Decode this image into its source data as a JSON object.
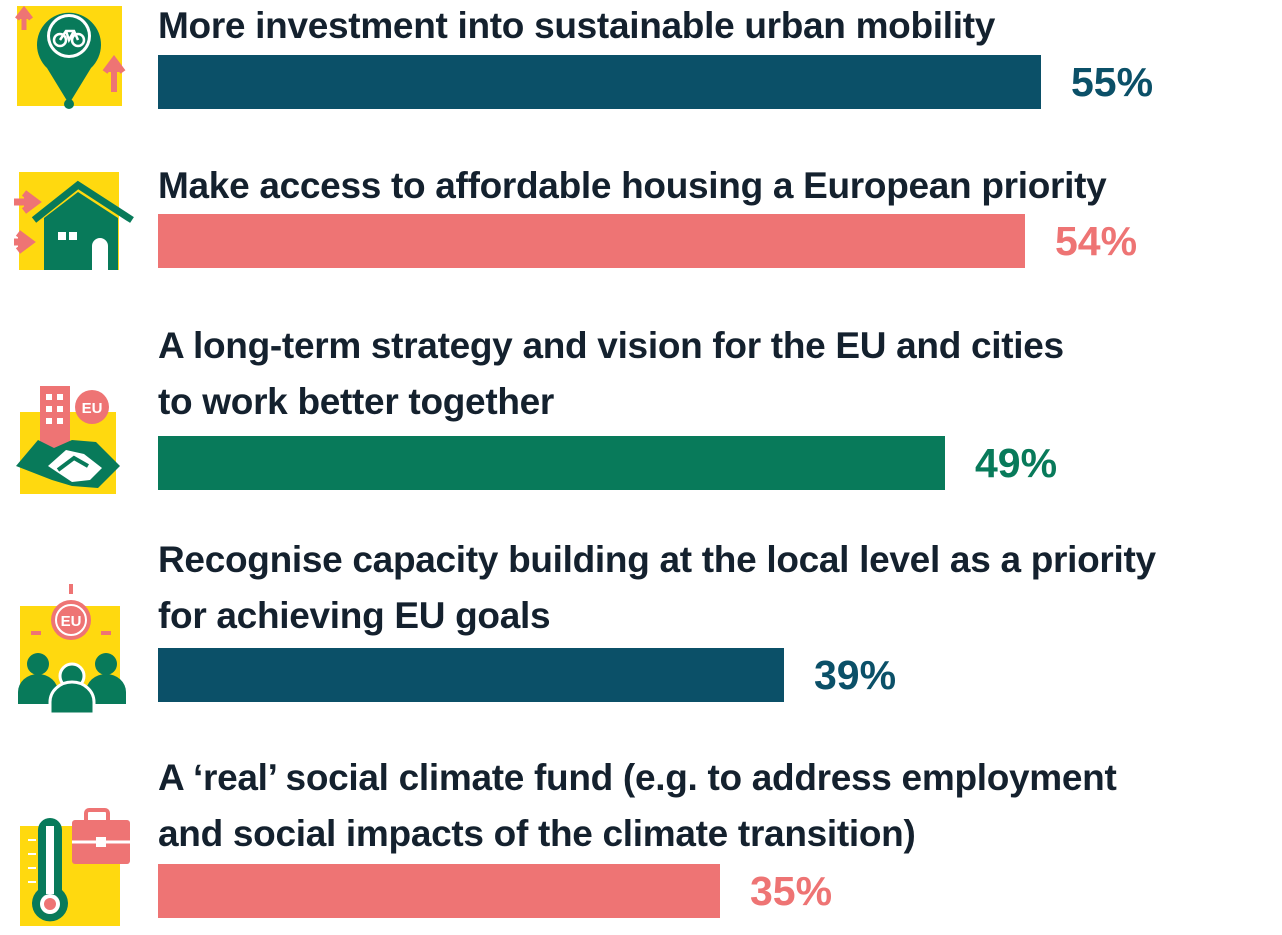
{
  "colors": {
    "teal": "#0b5068",
    "salmon": "#ee7474",
    "green": "#087a5a",
    "yellow": "#ffd90f",
    "text": "#14212e"
  },
  "chart_data": {
    "type": "bar",
    "orientation": "horizontal",
    "xlim": [
      0,
      100
    ],
    "categories": [
      "More investment into sustainable urban mobility",
      "Make access to affordable housing a European priority",
      "A long-term strategy and vision for the EU and cities to work better together",
      "Recognise capacity building at the local level as a priority for achieving EU goals",
      "A ‘real’ social climate fund (e.g. to address employment and social impacts of the climate transition)"
    ],
    "values": [
      55,
      54,
      49,
      39,
      35
    ],
    "value_labels": [
      "55%",
      "54%",
      "49%",
      "39%",
      "35%"
    ],
    "bar_colors": [
      "#0b5068",
      "#ee7474",
      "#087a5a",
      "#0b5068",
      "#ee7474"
    ]
  },
  "items": [
    {
      "lines": [
        "More investment into sustainable urban mobility"
      ],
      "value_label": "55%",
      "icon": "bicycle-location-pin-icon"
    },
    {
      "lines": [
        "Make access to affordable housing a European priority"
      ],
      "value_label": "54%",
      "icon": "house-icon"
    },
    {
      "lines": [
        "A long-term strategy and vision for the EU and cities",
        "to work better together"
      ],
      "value_label": "49%",
      "icon": "handshake-eu-icon"
    },
    {
      "lines": [
        "Recognise capacity building at the local level as a priority",
        "for achieving EU goals"
      ],
      "value_label": "39%",
      "icon": "people-eu-icon"
    },
    {
      "lines": [
        "A ‘real’ social climate fund (e.g. to address employment",
        "and social impacts of the climate transition)"
      ],
      "value_label": "35%",
      "icon": "thermometer-briefcase-icon"
    }
  ],
  "icon_texts": {
    "eu_badge": "EU"
  }
}
